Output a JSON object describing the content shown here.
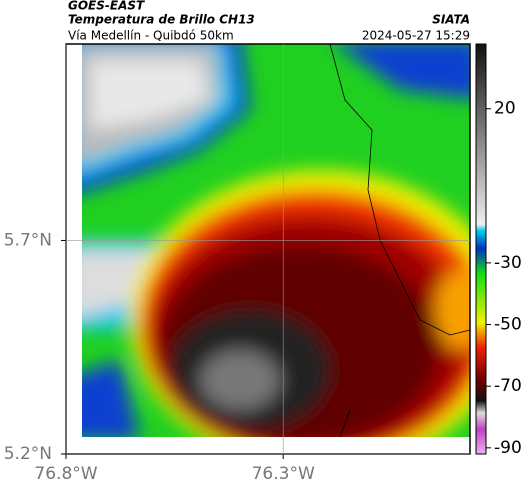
{
  "header": {
    "source": "GOES-EAST",
    "title": "Temperatura de Brillo CH13",
    "subtitle": "Vía Medellín - Quibdó 50km",
    "organization": "SIATA",
    "timestamp": "2024-05-27 15:29"
  },
  "map": {
    "xlim": [
      -76.8,
      -75.87
    ],
    "ylim": [
      5.2,
      6.16
    ],
    "xticks": [
      {
        "value": -76.8,
        "label": "76.8°W"
      },
      {
        "value": -76.3,
        "label": "76.3°W"
      }
    ],
    "yticks": [
      {
        "value": 5.2,
        "label": "5.2°N"
      },
      {
        "value": 5.7,
        "label": "5.7°N"
      }
    ]
  },
  "colorbar": {
    "lim": [
      -92,
      41
    ],
    "ticks": [
      20,
      -30,
      -50,
      -70,
      -90
    ]
  }
}
